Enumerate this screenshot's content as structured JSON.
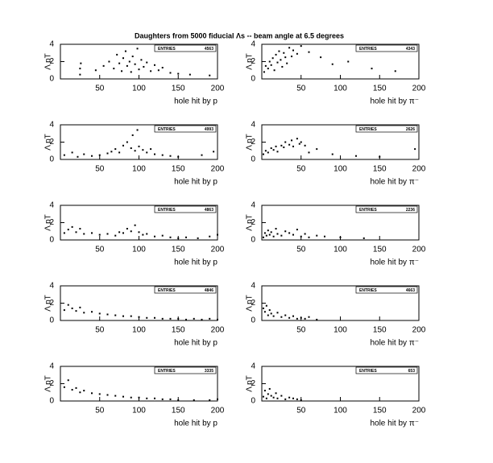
{
  "title": "Daughters from 5000 fiducial Λs -- beam angle at 6.5 degrees",
  "chart_data": [
    {
      "type": "scatter",
      "x_label": "hole hit by p",
      "y_label": "Λ pT",
      "stats_label": "ENTRIES",
      "stats_value": 4563,
      "xlim": [
        0,
        200
      ],
      "ylim": [
        0,
        4
      ],
      "xticks": [
        50,
        100,
        150,
        200
      ],
      "yticks": [
        0,
        2,
        4
      ],
      "x": [
        25,
        25,
        26,
        45,
        55,
        62,
        68,
        72,
        75,
        78,
        80,
        83,
        85,
        88,
        90,
        92,
        95,
        98,
        100,
        103,
        106,
        110,
        115,
        120,
        125,
        130,
        140,
        150,
        165,
        190
      ],
      "y": [
        0.5,
        1.2,
        1.8,
        1.0,
        1.5,
        2.0,
        1.2,
        2.8,
        1.8,
        0.9,
        2.4,
        3.2,
        1.5,
        2.0,
        0.8,
        2.6,
        1.7,
        3.5,
        1.1,
        2.2,
        1.4,
        1.9,
        0.9,
        1.6,
        1.0,
        1.3,
        0.7,
        0.6,
        0.5,
        0.4
      ]
    },
    {
      "type": "scatter",
      "x_label": "hole hit by π⁻",
      "y_label": "Λ pT",
      "stats_label": "ENTRIES",
      "stats_value": 4343,
      "xlim": [
        0,
        200
      ],
      "ylim": [
        0,
        4
      ],
      "xticks": [
        50,
        100,
        150,
        200
      ],
      "yticks": [
        0,
        2,
        4
      ],
      "x": [
        3,
        5,
        8,
        10,
        12,
        14,
        16,
        18,
        20,
        22,
        24,
        26,
        28,
        30,
        32,
        35,
        38,
        40,
        45,
        50,
        60,
        75,
        90,
        110,
        140,
        170
      ],
      "y": [
        0.8,
        1.5,
        1.2,
        2.0,
        1.6,
        2.4,
        1.0,
        2.8,
        1.9,
        3.2,
        2.2,
        1.4,
        3.0,
        2.5,
        1.8,
        3.6,
        2.6,
        3.3,
        2.9,
        3.8,
        3.1,
        2.5,
        1.7,
        2.0,
        1.2,
        0.9
      ]
    },
    {
      "type": "scatter",
      "x_label": "hole hit by p",
      "y_label": "Λ pT",
      "stats_label": "ENTRIES",
      "stats_value": 4993,
      "xlim": [
        0,
        200
      ],
      "ylim": [
        0,
        4
      ],
      "xticks": [
        50,
        100,
        150,
        200
      ],
      "yticks": [
        0,
        2,
        4
      ],
      "x": [
        5,
        15,
        22,
        30,
        40,
        50,
        60,
        65,
        70,
        75,
        80,
        85,
        90,
        92,
        95,
        98,
        100,
        105,
        110,
        115,
        120,
        130,
        140,
        150,
        180,
        195
      ],
      "y": [
        0.5,
        0.8,
        0.3,
        0.6,
        0.4,
        0.5,
        0.7,
        0.9,
        1.2,
        0.8,
        1.6,
        2.0,
        1.3,
        2.8,
        1.0,
        3.4,
        1.5,
        1.1,
        0.8,
        1.2,
        0.6,
        0.5,
        0.4,
        0.3,
        0.5,
        0.9
      ]
    },
    {
      "type": "scatter",
      "x_label": "hole hit by π⁻",
      "y_label": "Λ pT",
      "stats_label": "ENTRIES",
      "stats_value": 2626,
      "xlim": [
        0,
        200
      ],
      "ylim": [
        0,
        4
      ],
      "xticks": [
        50,
        100,
        150,
        200
      ],
      "yticks": [
        0,
        2,
        4
      ],
      "x": [
        2,
        5,
        8,
        12,
        15,
        18,
        20,
        25,
        28,
        30,
        35,
        38,
        40,
        45,
        48,
        50,
        55,
        60,
        70,
        90,
        120,
        150,
        195
      ],
      "y": [
        0.6,
        1.0,
        0.8,
        1.3,
        1.1,
        1.5,
        0.9,
        1.6,
        1.4,
        2.0,
        1.7,
        2.2,
        1.5,
        2.4,
        1.8,
        2.0,
        1.6,
        0.8,
        1.2,
        0.6,
        0.4,
        0.3,
        1.2
      ]
    },
    {
      "type": "scatter",
      "x_label": "hole hit by p",
      "y_label": "Λ pT",
      "stats_label": "ENTRIES",
      "stats_value": 4863,
      "xlim": [
        0,
        200
      ],
      "ylim": [
        0,
        4
      ],
      "xticks": [
        50,
        100,
        150,
        200
      ],
      "yticks": [
        0,
        2,
        4
      ],
      "x": [
        5,
        10,
        15,
        20,
        25,
        30,
        40,
        50,
        60,
        70,
        75,
        80,
        85,
        90,
        95,
        100,
        105,
        110,
        120,
        130,
        140,
        150,
        160,
        175,
        190,
        200
      ],
      "y": [
        0.8,
        1.2,
        1.5,
        0.9,
        1.3,
        0.7,
        0.8,
        0.6,
        0.7,
        0.5,
        0.9,
        0.8,
        1.3,
        1.0,
        1.7,
        0.9,
        0.6,
        0.7,
        0.4,
        0.5,
        0.3,
        0.2,
        0.3,
        0.2,
        0.4,
        0.6
      ]
    },
    {
      "type": "scatter",
      "x_label": "hole hit by π⁻",
      "y_label": "Λ pT",
      "stats_label": "ENTRIES",
      "stats_value": 2236,
      "xlim": [
        0,
        200
      ],
      "ylim": [
        0,
        4
      ],
      "xticks": [
        50,
        100,
        150,
        200
      ],
      "yticks": [
        0,
        2,
        4
      ],
      "x": [
        2,
        4,
        6,
        8,
        10,
        12,
        15,
        18,
        20,
        25,
        30,
        35,
        40,
        45,
        50,
        55,
        60,
        70,
        80,
        100,
        130
      ],
      "y": [
        0.3,
        0.8,
        0.5,
        1.1,
        0.6,
        0.9,
        0.4,
        1.3,
        0.7,
        0.5,
        1.0,
        0.8,
        0.6,
        1.2,
        0.4,
        0.7,
        0.3,
        0.5,
        0.4,
        0.3,
        0.2
      ]
    },
    {
      "type": "scatter",
      "x_label": "hole hit by p",
      "y_label": "Λ pT",
      "stats_label": "ENTRIES",
      "stats_value": 4846,
      "xlim": [
        0,
        200
      ],
      "ylim": [
        0,
        4
      ],
      "xticks": [
        50,
        100,
        150,
        200
      ],
      "yticks": [
        0,
        2,
        4
      ],
      "x": [
        5,
        10,
        15,
        20,
        25,
        30,
        40,
        50,
        60,
        70,
        80,
        90,
        100,
        110,
        120,
        130,
        140,
        150,
        160,
        170,
        180,
        190,
        200
      ],
      "y": [
        1.2,
        1.8,
        1.4,
        1.1,
        1.5,
        0.9,
        1.0,
        0.8,
        0.7,
        0.6,
        0.5,
        0.5,
        0.4,
        0.3,
        0.3,
        0.2,
        0.2,
        0.2,
        0.1,
        0.2,
        0.1,
        0.2,
        0.1
      ]
    },
    {
      "type": "scatter",
      "x_label": "hole hit by π⁻",
      "y_label": "Λ pT",
      "stats_label": "ENTRIES",
      "stats_value": 4663,
      "xlim": [
        0,
        200
      ],
      "ylim": [
        0,
        4
      ],
      "xticks": [
        50,
        100,
        150,
        200
      ],
      "yticks": [
        0,
        2,
        4
      ],
      "x": [
        2,
        4,
        6,
        8,
        10,
        12,
        15,
        20,
        25,
        30,
        35,
        40,
        45,
        50,
        55,
        60,
        70
      ],
      "y": [
        1.4,
        1.0,
        1.7,
        0.6,
        1.2,
        0.8,
        0.5,
        0.9,
        0.4,
        0.6,
        0.3,
        0.5,
        0.2,
        0.3,
        0.2,
        0.4,
        0.1
      ]
    },
    {
      "type": "scatter",
      "x_label": "hole hit by p",
      "y_label": "Λ pT",
      "stats_label": "ENTRIES",
      "stats_value": 3335,
      "xlim": [
        0,
        200
      ],
      "ylim": [
        0,
        4
      ],
      "xticks": [
        50,
        100,
        150,
        200
      ],
      "yticks": [
        0,
        2,
        4
      ],
      "x": [
        5,
        10,
        15,
        20,
        25,
        30,
        40,
        50,
        60,
        70,
        80,
        90,
        100,
        110,
        120,
        130,
        140,
        150,
        170,
        190,
        200
      ],
      "y": [
        1.6,
        2.4,
        1.3,
        1.5,
        1.0,
        1.2,
        0.9,
        0.8,
        0.7,
        0.6,
        0.5,
        0.4,
        0.4,
        0.3,
        0.3,
        0.2,
        0.2,
        0.1,
        0.1,
        0.1,
        0.2
      ]
    },
    {
      "type": "scatter",
      "x_label": "hole hit by π⁻",
      "y_label": "Λ pT",
      "stats_label": "ENTRIES",
      "stats_value": 653,
      "xlim": [
        0,
        200
      ],
      "ylim": [
        0,
        4
      ],
      "xticks": [
        50,
        100,
        150,
        200
      ],
      "yticks": [
        0,
        2,
        4
      ],
      "x": [
        2,
        4,
        6,
        8,
        10,
        12,
        15,
        18,
        20,
        25,
        30,
        35,
        40,
        45,
        50
      ],
      "y": [
        0.5,
        1.2,
        0.3,
        0.8,
        1.4,
        0.6,
        0.4,
        0.9,
        0.3,
        0.6,
        0.2,
        0.4,
        0.3,
        0.2,
        0.1
      ]
    }
  ]
}
